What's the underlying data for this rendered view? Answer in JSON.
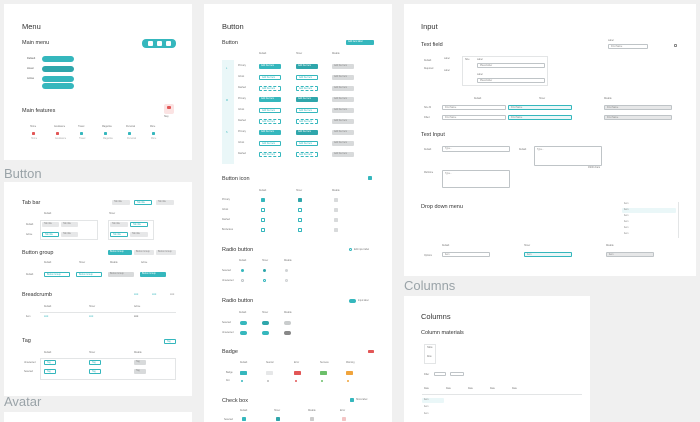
{
  "sections": {
    "button": "Button",
    "avatar": "Avatar",
    "columns": "Columns"
  },
  "menu": {
    "title": "Menu",
    "main_menu": "Main menu",
    "main_features": "Main features",
    "row_labels": [
      "Default",
      "Hover",
      "Active"
    ],
    "feature_labels": [
      "Home",
      "Assistance",
      "Travel",
      "Magazine",
      "Personal",
      "More"
    ],
    "single_label": "Stay"
  },
  "button_col1": {
    "tab_bar": "Tab bar",
    "tab_headers": [
      "Default",
      "Hover"
    ],
    "tab_rows": [
      "Default",
      "Active"
    ],
    "tab_item": "Tab title",
    "button_group": "Button group",
    "bg_headers": [
      "Default",
      "Hover",
      "Disable",
      "Active"
    ],
    "bg_row": "Default",
    "bg_item": "Button Group",
    "breadcrumb": "Breadcrumb",
    "bc_headers": [
      "Default",
      "Hover",
      "Active"
    ],
    "bc_row": "Item",
    "bc_item": "Link",
    "tag": "Tag",
    "tag_headers": [
      "Default",
      "Hover",
      "Disable"
    ],
    "tag_rows": [
      "Unselected",
      "Selected"
    ],
    "tag_item": "Tag"
  },
  "button_col2": {
    "title": "Button",
    "subtitle": "Button",
    "top_button": "Add item label",
    "headers": [
      "Default",
      "Hover",
      "Disable"
    ],
    "sizes": [
      "L",
      "M",
      "S"
    ],
    "rows": [
      "Primary",
      "Ghost",
      "Dashed",
      "Primary",
      "Ghost",
      "Dashed",
      "Primary",
      "Ghost",
      "Dashed"
    ],
    "btn_label": "Add the Item",
    "button_icon": "Button icon",
    "bi_headers": [
      "Default",
      "Hover",
      "Disable"
    ],
    "bi_rows": [
      "Primary",
      "Ghost",
      "Dashed",
      "Borderless"
    ],
    "radio1": "Radio button",
    "radio1_note": "Edit input label",
    "radio_headers": [
      "Default",
      "Hover",
      "Disable"
    ],
    "radio_rows": [
      "Selected",
      "Unselected"
    ],
    "radio2": "Radio button",
    "radio2_note": "Input label",
    "badge": "Badge",
    "badge_headers": [
      "Default",
      "Neutral",
      "Error",
      "Success",
      "Warning"
    ],
    "badge_rows": [
      "Badge",
      "Dot"
    ],
    "checkbox": "Check box",
    "checkbox_note": "Show label",
    "cb_headers": [
      "Default",
      "Hover",
      "Disable",
      "Error"
    ],
    "cb_row": "Selected"
  },
  "input": {
    "title": "Input",
    "text_field": "Text field",
    "label": "Label",
    "required": "Required",
    "size": "Size",
    "placeholder": "Placeholder",
    "first_name": "First Name",
    "tf_headers": [
      "Default",
      "Hover",
      "Disable"
    ],
    "tf_rows": [
      "Size M",
      "Filled"
    ],
    "text_input": "Text Input",
    "ti_rows": [
      "Default",
      "Multi-line"
    ],
    "ti_headers": [
      "Default",
      "Active"
    ],
    "type_here": "Type...",
    "char_count": "0/200 chars",
    "dropdown": "Drop down menu",
    "dd_headers": [
      "Default",
      "Hover",
      "Disable"
    ],
    "dd_row": "Options",
    "dd_item": "Item"
  },
  "columns": {
    "title": "Columns",
    "subtitle": "Column materials",
    "items": [
      "Table",
      "Row"
    ],
    "filter": "Filter",
    "col_headers": [
      "Date",
      "Date",
      "Date",
      "Date",
      "Date"
    ],
    "rows": [
      "Item",
      "Item",
      "Item"
    ]
  },
  "colors": {
    "accent": "#35b7bd",
    "error": "#e25656",
    "success": "#6cbf6a",
    "warning": "#f0a43c"
  }
}
